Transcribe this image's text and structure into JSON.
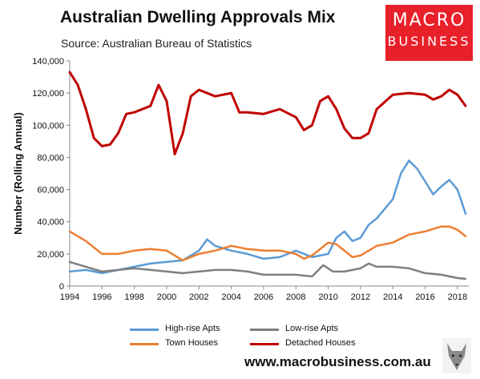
{
  "title": "Australian Dwelling Approvals Mix",
  "subtitle": "Source: Australian Bureau of Statistics",
  "logo": {
    "line1": "MACRO",
    "line2": "BUSINESS",
    "color": "#e8202a"
  },
  "website": "www.macrobusiness.com.au",
  "chart_data": {
    "type": "line",
    "title": "Australian Dwelling Approvals Mix",
    "subtitle": "Source: Australian Bureau of Statistics",
    "xlabel": "",
    "ylabel": "Number (Rolling Annual)",
    "xlim": [
      1994,
      2018.7
    ],
    "ylim": [
      0,
      140000
    ],
    "xticks": [
      "1994",
      "1996",
      "1998",
      "2000",
      "2002",
      "2004",
      "2006",
      "2008",
      "2010",
      "2012",
      "2014",
      "2016",
      "2018"
    ],
    "yticks": [
      "0",
      "20,000",
      "40,000",
      "60,000",
      "80,000",
      "100,000",
      "120,000",
      "140,000"
    ],
    "grid": false,
    "legend_position": "bottom",
    "series": [
      {
        "name": "High-rise Apts",
        "color": "#5b9bd5",
        "x": [
          1994,
          1995,
          1996,
          1997,
          1998,
          1999,
          2000,
          2001,
          2002,
          2002.5,
          2003,
          2004,
          2005,
          2006,
          2007,
          2008,
          2009,
          2010,
          2010.5,
          2011,
          2011.5,
          2012,
          2012.5,
          2013,
          2014,
          2014.5,
          2015,
          2015.5,
          2016,
          2016.5,
          2017,
          2017.5,
          2018,
          2018.5
        ],
        "y": [
          9000,
          10000,
          8000,
          10000,
          12000,
          14000,
          15000,
          16000,
          22000,
          29000,
          25000,
          22000,
          20000,
          17000,
          18000,
          22000,
          18000,
          20000,
          30000,
          34000,
          28000,
          30000,
          38000,
          42000,
          54000,
          70000,
          78000,
          73000,
          65000,
          57000,
          62000,
          66000,
          60000,
          45000
        ]
      },
      {
        "name": "Low-rise Apts",
        "color": "#7f7f7f",
        "x": [
          1994,
          1995,
          1996,
          1997,
          1998,
          1999,
          2000,
          2001,
          2002,
          2003,
          2004,
          2005,
          2006,
          2007,
          2008,
          2009,
          2009.7,
          2010.3,
          2011,
          2012,
          2012.5,
          2013,
          2014,
          2015,
          2016,
          2017,
          2018,
          2018.5
        ],
        "y": [
          15000,
          12000,
          9000,
          10000,
          11000,
          10000,
          9000,
          8000,
          9000,
          10000,
          10000,
          9000,
          7000,
          7000,
          7000,
          6000,
          13000,
          9000,
          9000,
          11000,
          14000,
          12000,
          12000,
          11000,
          8000,
          7000,
          5000,
          4500
        ]
      },
      {
        "name": "Town Houses",
        "color": "#ed7d31",
        "x": [
          1994,
          1995,
          1996,
          1997,
          1998,
          1999,
          2000,
          2001,
          2002,
          2003,
          2004,
          2005,
          2006,
          2007,
          2008,
          2008.5,
          2009,
          2010,
          2010.5,
          2011,
          2011.5,
          2012,
          2013,
          2014,
          2015,
          2016,
          2017,
          2017.5,
          2018,
          2018.5
        ],
        "y": [
          34000,
          28000,
          20000,
          20000,
          22000,
          23000,
          22000,
          16000,
          20000,
          22000,
          25000,
          23000,
          22000,
          22000,
          20000,
          17000,
          19000,
          27000,
          26000,
          22000,
          18000,
          19000,
          25000,
          27000,
          32000,
          34000,
          37000,
          37000,
          35000,
          31000
        ]
      },
      {
        "name": "Detached Houses",
        "color": "#c00000",
        "x": [
          1994,
          1994.5,
          1995,
          1995.5,
          1996,
          1996.5,
          1997,
          1997.5,
          1998,
          1999,
          1999.5,
          2000,
          2000.5,
          2001,
          2001.5,
          2002,
          2003,
          2004,
          2004.5,
          2005,
          2006,
          2007,
          2008,
          2008.5,
          2009,
          2009.5,
          2010,
          2010.5,
          2011,
          2011.5,
          2012,
          2012.5,
          2013,
          2014,
          2015,
          2016,
          2016.5,
          2017,
          2017.5,
          2018,
          2018.5
        ],
        "y": [
          133000,
          125000,
          110000,
          92000,
          87000,
          88000,
          95000,
          107000,
          108000,
          112000,
          125000,
          115000,
          82000,
          95000,
          118000,
          122000,
          118000,
          120000,
          108000,
          108000,
          107000,
          110000,
          105000,
          97000,
          100000,
          115000,
          118000,
          110000,
          98000,
          92000,
          92000,
          95000,
          110000,
          119000,
          120000,
          119000,
          116000,
          118000,
          122000,
          119000,
          112000
        ]
      }
    ]
  }
}
